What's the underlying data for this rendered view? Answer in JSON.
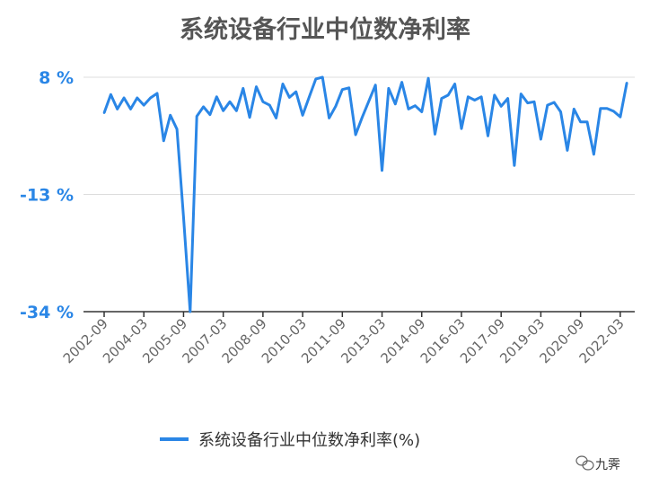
{
  "chart_data": {
    "type": "line",
    "title": "系统设备行业中位数净利率",
    "xlabel": "",
    "ylabel": "",
    "y_ticks": [
      "8 %",
      "-13 %",
      "-34 %"
    ],
    "y_tick_values": [
      8,
      -13,
      -34
    ],
    "ylim": [
      -34,
      8
    ],
    "x_tick_labels": [
      "2002-09",
      "2004-03",
      "2005-09",
      "2007-03",
      "2008-09",
      "2010-03",
      "2011-09",
      "2013-03",
      "2014-09",
      "2016-03",
      "2017-09",
      "2019-03",
      "2020-09",
      "2022-03"
    ],
    "series": [
      {
        "name": "系统设备行业中位数净利率(%)",
        "color": "#2A86E6",
        "x": [
          "2002-09",
          "2002-12",
          "2003-03",
          "2003-06",
          "2003-09",
          "2003-12",
          "2004-03",
          "2004-06",
          "2004-09",
          "2004-12",
          "2005-03",
          "2005-06",
          "2005-09",
          "2005-12",
          "2006-03",
          "2006-06",
          "2006-09",
          "2006-12",
          "2007-03",
          "2007-06",
          "2007-09",
          "2007-12",
          "2008-03",
          "2008-06",
          "2008-09",
          "2008-12",
          "2009-03",
          "2009-06",
          "2009-09",
          "2009-12",
          "2010-03",
          "2010-06",
          "2010-09",
          "2010-12",
          "2011-03",
          "2011-06",
          "2011-09",
          "2011-12",
          "2012-03",
          "2012-06",
          "2012-09",
          "2012-12",
          "2013-03",
          "2013-06",
          "2013-09",
          "2013-12",
          "2014-03",
          "2014-06",
          "2014-09",
          "2014-12",
          "2015-03",
          "2015-06",
          "2015-09",
          "2015-12",
          "2016-03",
          "2016-06",
          "2016-09",
          "2016-12",
          "2017-03",
          "2017-06",
          "2017-09",
          "2017-12",
          "2018-03",
          "2018-06",
          "2018-09",
          "2018-12",
          "2019-03",
          "2019-06",
          "2019-09",
          "2019-12",
          "2020-03",
          "2020-06",
          "2020-09",
          "2020-12",
          "2021-03",
          "2021-06",
          "2021-09",
          "2021-12",
          "2022-03",
          "2022-06"
        ],
        "values": [
          1.6,
          4.9,
          2.3,
          4.3,
          2.3,
          4.3,
          3.0,
          4.3,
          5.1,
          -3.4,
          1.2,
          -1.3,
          -17.0,
          -34.0,
          1.0,
          2.7,
          1.3,
          4.5,
          2.0,
          3.6,
          2.0,
          6.0,
          0.8,
          6.3,
          3.6,
          3.0,
          0.7,
          6.8,
          4.4,
          5.4,
          1.2,
          4.5,
          7.7,
          8.0,
          0.7,
          2.8,
          5.8,
          6.1,
          -2.3,
          0.8,
          3.7,
          6.6,
          -8.7,
          6.0,
          3.2,
          7.1,
          2.3,
          2.9,
          1.8,
          7.8,
          -2.2,
          4.2,
          4.8,
          6.8,
          -1.2,
          4.5,
          3.9,
          4.5,
          -2.5,
          4.8,
          2.8,
          4.2,
          -7.8,
          5.0,
          3.4,
          3.6,
          -3.1,
          3.0,
          3.5,
          1.8,
          -5.1,
          2.3,
          0.0,
          0.0,
          -5.8,
          2.4,
          2.4,
          1.9,
          0.9,
          7.0
        ]
      }
    ],
    "grid": "horizontal",
    "legend_position": "bottom"
  },
  "legend": {
    "label": "系统设备行业中位数净利率(%)"
  },
  "watermark": {
    "icon": "wechat-icon",
    "text": "九霁"
  }
}
